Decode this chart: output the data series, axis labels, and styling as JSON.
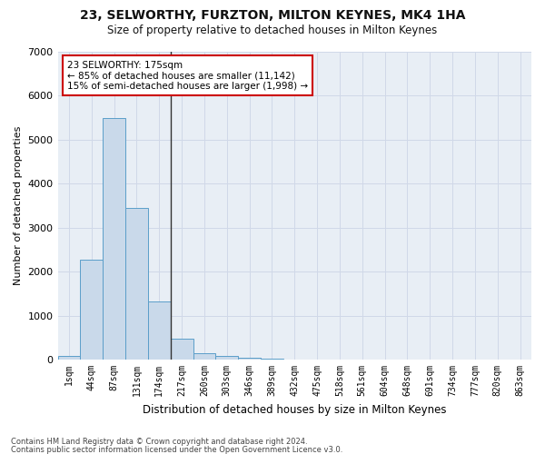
{
  "title1": "23, SELWORTHY, FURZTON, MILTON KEYNES, MK4 1HA",
  "title2": "Size of property relative to detached houses in Milton Keynes",
  "xlabel": "Distribution of detached houses by size in Milton Keynes",
  "ylabel": "Number of detached properties",
  "bar_labels": [
    "1sqm",
    "44sqm",
    "87sqm",
    "131sqm",
    "174sqm",
    "217sqm",
    "260sqm",
    "303sqm",
    "346sqm",
    "389sqm",
    "432sqm",
    "475sqm",
    "518sqm",
    "561sqm",
    "604sqm",
    "648sqm",
    "691sqm",
    "734sqm",
    "777sqm",
    "820sqm",
    "863sqm"
  ],
  "bar_values": [
    80,
    2270,
    5480,
    3450,
    1320,
    470,
    155,
    90,
    50,
    30,
    0,
    0,
    0,
    0,
    0,
    0,
    0,
    0,
    0,
    0,
    0
  ],
  "bar_color": "#c9d9ea",
  "bar_edge_color": "#5b9ec9",
  "annotation_text": "23 SELWORTHY: 175sqm\n← 85% of detached houses are smaller (11,142)\n15% of semi-detached houses are larger (1,998) →",
  "annotation_box_color": "#ffffff",
  "annotation_border_color": "#cc0000",
  "vline_color": "#333333",
  "ylim": [
    0,
    7000
  ],
  "yticks": [
    0,
    1000,
    2000,
    3000,
    4000,
    5000,
    6000,
    7000
  ],
  "grid_color": "#d0d8e8",
  "background_color": "#e8eef5",
  "fig_background": "#ffffff",
  "footer1": "Contains HM Land Registry data © Crown copyright and database right 2024.",
  "footer2": "Contains public sector information licensed under the Open Government Licence v3.0."
}
